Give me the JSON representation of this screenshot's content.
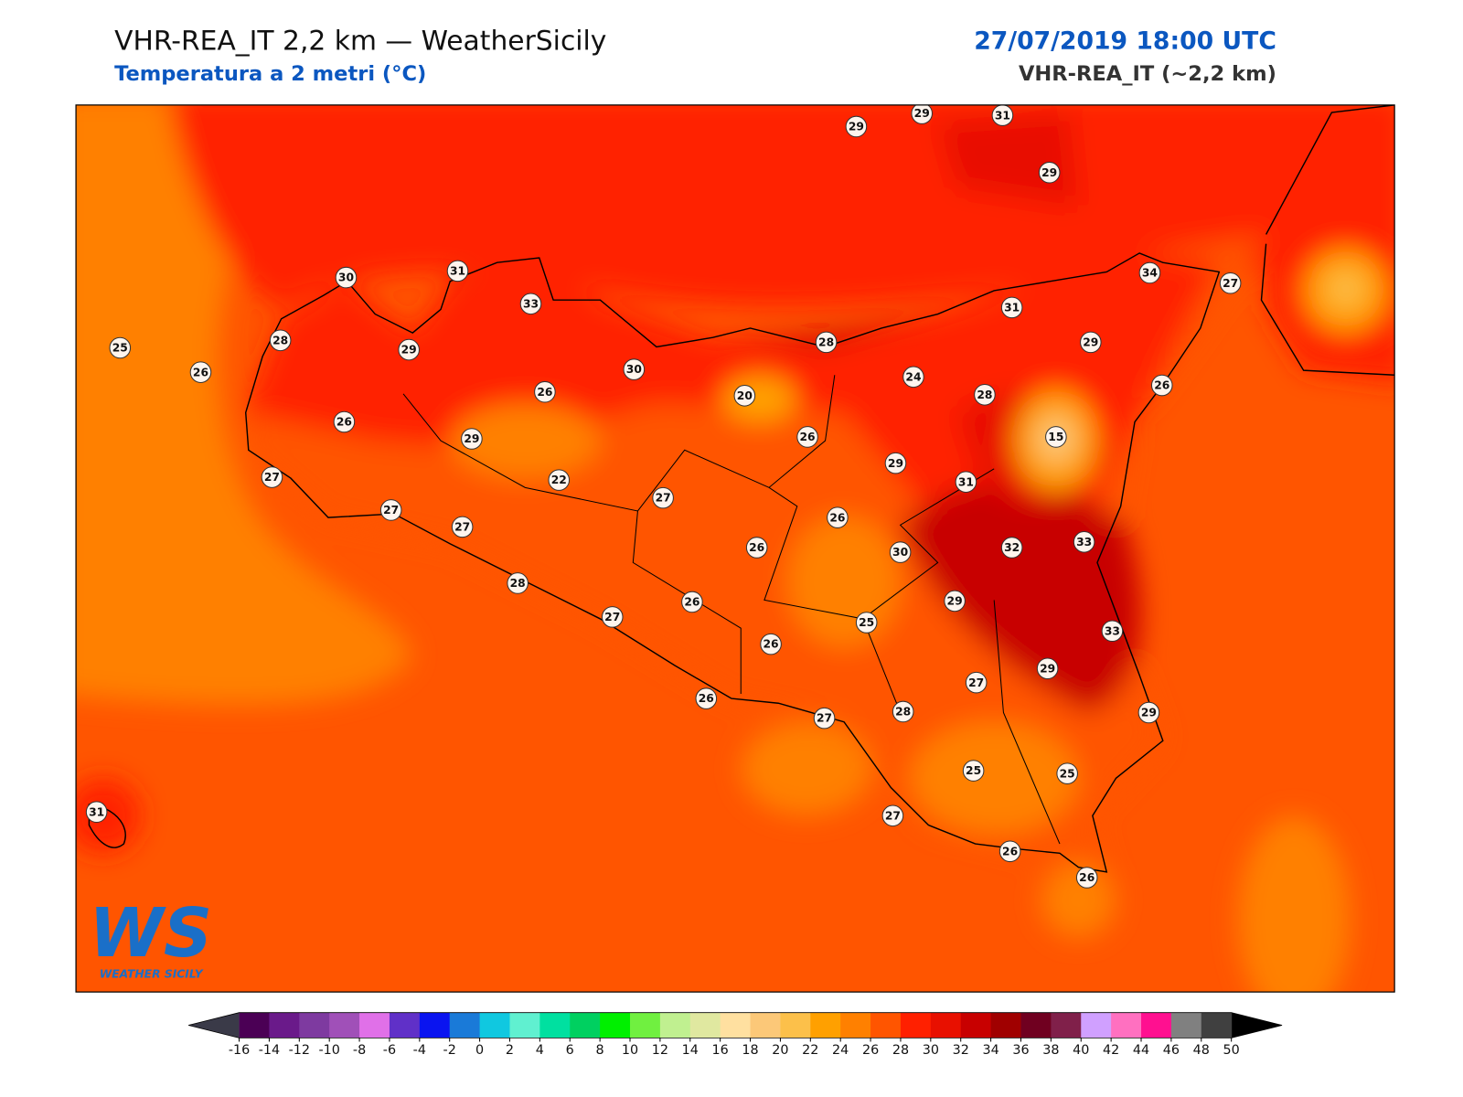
{
  "header": {
    "title": "VHR-REA_IT 2,2 km — WeatherSicily",
    "subtitle": "Temperatura a 2 metri (°C)",
    "datetime": "27/07/2019 18:00 UTC",
    "model": "VHR-REA_IT (~2,2 km)"
  },
  "map": {
    "stations": [
      29,
      29,
      31,
      29,
      30,
      31,
      33,
      34,
      27,
      31,
      25,
      28,
      29,
      28,
      29,
      26,
      30,
      24,
      26,
      20,
      28,
      26,
      26,
      26,
      15,
      29,
      29,
      27,
      22,
      31,
      27,
      27,
      26,
      27,
      26,
      30,
      32,
      33,
      28,
      29,
      26,
      27,
      25,
      33,
      26,
      29,
      27,
      26,
      27,
      28,
      29,
      25,
      25,
      31,
      27,
      26,
      26
    ]
  },
  "colorbar": {
    "ticks": [
      -16,
      -14,
      -12,
      -10,
      -8,
      -6,
      -4,
      -2,
      0,
      2,
      4,
      6,
      8,
      10,
      12,
      14,
      16,
      18,
      20,
      22,
      24,
      26,
      28,
      30,
      32,
      34,
      36,
      38,
      40,
      42,
      44,
      46,
      48,
      50
    ],
    "colors": [
      "#4b0055",
      "#6a1a8a",
      "#7e3aa0",
      "#a050b8",
      "#e070e8",
      "#6030c8",
      "#0a14f0",
      "#1a7ad8",
      "#10c8e0",
      "#60f0d0",
      "#00e0a0",
      "#00d060",
      "#00f000",
      "#70f040",
      "#c0f090",
      "#e0e8a0",
      "#ffe0a0",
      "#fcc878",
      "#fcc04a",
      "#ffa000",
      "#ff8000",
      "#ff5500",
      "#ff2000",
      "#e81000",
      "#c80000",
      "#a00000",
      "#700020",
      "#80204a",
      "#d0a0ff",
      "#ff70c0",
      "#ff1090",
      "#808080",
      "#404040"
    ],
    "under_color": "#3a3a48",
    "over_color": "#000000"
  },
  "logo": {
    "text": "WS",
    "caption": "WEATHER SICILY"
  }
}
